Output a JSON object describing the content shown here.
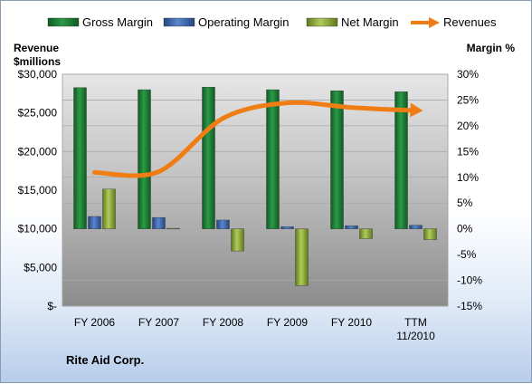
{
  "chart_data": {
    "type": "bar",
    "categories": [
      "FY 2006",
      "FY 2007",
      "FY 2008",
      "FY 2009",
      "FY 2010",
      "TTM|11/2010"
    ],
    "series": [
      {
        "name": "Gross Margin",
        "axis": "right",
        "type": "bar",
        "color": "#1e7a34",
        "values": [
          27.4,
          27.0,
          27.5,
          27.0,
          26.8,
          26.6
        ]
      },
      {
        "name": "Operating Margin",
        "axis": "right",
        "type": "bar",
        "color": "#3a62a8",
        "values": [
          2.4,
          2.2,
          1.7,
          0.4,
          0.6,
          0.7
        ]
      },
      {
        "name": "Net Margin",
        "axis": "right",
        "type": "bar",
        "color": "#8fae3a",
        "values": [
          7.7,
          0.1,
          -4.3,
          -11.0,
          -1.9,
          -2.1
        ]
      },
      {
        "name": "Revenues",
        "axis": "left",
        "type": "line",
        "color": "#f07d14",
        "values": [
          17300,
          17400,
          24300,
          26300,
          25700,
          25300
        ]
      }
    ],
    "y_left": {
      "label_line1": "Revenue",
      "label_line2": "$millions",
      "min": 0,
      "max": 30000,
      "step": 5000,
      "tick_labels": [
        "$-",
        "$5,000",
        "$10,000",
        "$15,000",
        "$20,000",
        "$25,000",
        "$30,000"
      ]
    },
    "y_right": {
      "label": "Margin %",
      "min": -15,
      "max": 30,
      "step": 5,
      "tick_labels": [
        "-15%",
        "-10%",
        "-5%",
        "0%",
        "5%",
        "10%",
        "15%",
        "20%",
        "25%",
        "30%"
      ]
    },
    "legend_position": "top",
    "grid": true
  },
  "company": "Rite Aid Corp."
}
